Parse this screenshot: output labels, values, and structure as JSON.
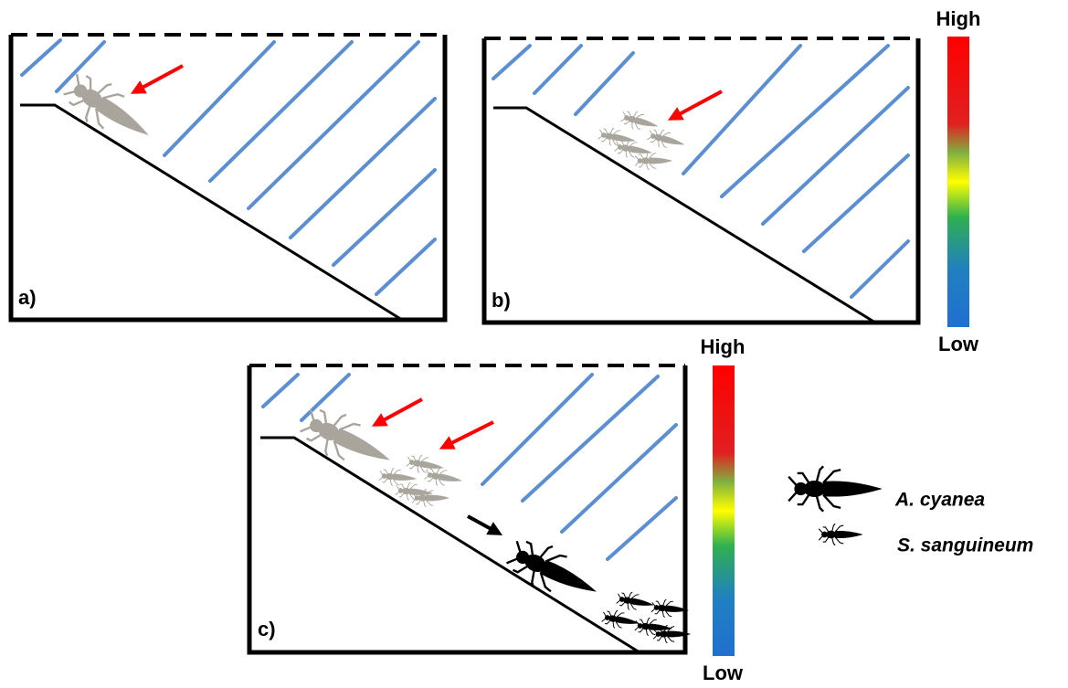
{
  "panels": [
    {
      "label": "a)"
    },
    {
      "label": "b)"
    },
    {
      "label": "c)"
    }
  ],
  "colorbars": [
    {
      "high": "High",
      "low": "Low"
    },
    {
      "high": "High",
      "low": "Low"
    }
  ],
  "legend": [
    {
      "label": "A. cyanea"
    },
    {
      "label": "S. sanguineum"
    }
  ]
}
